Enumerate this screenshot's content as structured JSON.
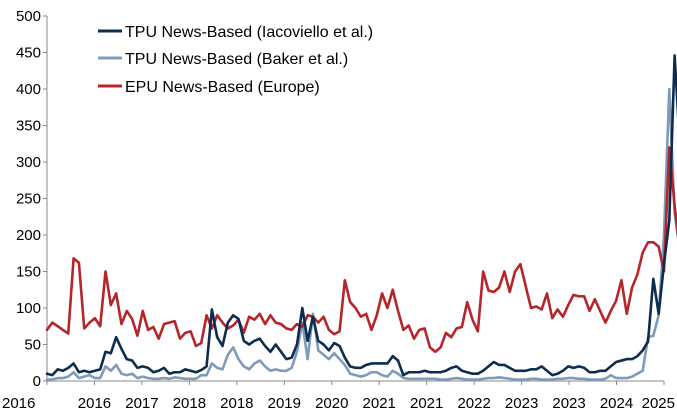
{
  "chart_data": {
    "type": "line",
    "title": "",
    "xlabel": "",
    "ylabel": "",
    "ylim": [
      0,
      500
    ],
    "yticks": [
      0,
      50,
      100,
      150,
      200,
      250,
      300,
      350,
      400,
      450,
      500
    ],
    "xlim": [
      2016.0,
      2025.667
    ],
    "xtick_labels": [
      "2016",
      "2016",
      "2017",
      "2018",
      "2018",
      "2019",
      "2020",
      "2021",
      "2021",
      "2022",
      "2023",
      "2023",
      "2024",
      "2025"
    ],
    "grid": false,
    "legend_position": "top-left",
    "series": [
      {
        "name": "TPU News-Based (Iacoviello et al.)",
        "color": "#0d2d4f",
        "start": 2016.0,
        "step_months": 1,
        "values": [
          10,
          8,
          16,
          14,
          18,
          24,
          12,
          14,
          12,
          14,
          16,
          40,
          38,
          60,
          44,
          30,
          28,
          18,
          20,
          18,
          12,
          14,
          18,
          10,
          12,
          12,
          16,
          14,
          12,
          15,
          20,
          98,
          60,
          48,
          80,
          90,
          85,
          55,
          50,
          55,
          58,
          48,
          40,
          50,
          40,
          30,
          32,
          50,
          100,
          55,
          88,
          55,
          50,
          42,
          52,
          48,
          32,
          20,
          18,
          18,
          22,
          24,
          24,
          24,
          24,
          34,
          28,
          8,
          12,
          12,
          12,
          14,
          12,
          12,
          12,
          14,
          18,
          20,
          14,
          12,
          10,
          10,
          14,
          20,
          26,
          22,
          22,
          18,
          14,
          14,
          14,
          16,
          16,
          20,
          14,
          8,
          10,
          14,
          20,
          18,
          20,
          18,
          12,
          12,
          14,
          14,
          20,
          26,
          28,
          30,
          30,
          34,
          42,
          54,
          140,
          92,
          160,
          220,
          446,
          320,
          210,
          180,
          218
        ],
        "extra_values": []
      },
      {
        "name": "TPU News-Based (Baker et al.)",
        "color": "#7f9bb8",
        "start": 2016.0,
        "step_months": 1,
        "values": [
          2,
          2,
          4,
          4,
          6,
          12,
          4,
          6,
          8,
          4,
          4,
          20,
          14,
          22,
          10,
          8,
          10,
          4,
          6,
          4,
          3,
          3,
          4,
          3,
          5,
          4,
          3,
          3,
          3,
          8,
          8,
          24,
          18,
          16,
          36,
          46,
          30,
          20,
          16,
          24,
          28,
          20,
          14,
          16,
          14,
          14,
          18,
          40,
          80,
          30,
          92,
          42,
          36,
          30,
          38,
          30,
          22,
          10,
          8,
          6,
          8,
          12,
          12,
          8,
          6,
          14,
          10,
          4,
          3,
          3,
          3,
          3,
          3,
          3,
          2,
          2,
          3,
          4,
          3,
          2,
          2,
          2,
          3,
          4,
          4,
          5,
          4,
          3,
          2,
          2,
          2,
          3,
          3,
          2,
          2,
          2,
          3,
          3,
          4,
          4,
          3,
          3,
          2,
          2,
          2,
          3,
          8,
          4,
          4,
          4,
          6,
          10,
          14,
          60,
          62,
          90,
          200,
          400,
          230,
          176,
          175
        ],
        "extra_values": []
      },
      {
        "name": "EPU News-Based (Europe)",
        "color": "#b5252a",
        "start": 2016.0,
        "step_months": 1,
        "values": [
          70,
          80,
          75,
          70,
          65,
          168,
          162,
          72,
          80,
          86,
          75,
          150,
          104,
          120,
          78,
          96,
          85,
          62,
          96,
          70,
          74,
          58,
          78,
          80,
          82,
          58,
          66,
          68,
          48,
          52,
          90,
          72,
          90,
          80,
          72,
          76,
          84,
          66,
          88,
          84,
          92,
          78,
          90,
          80,
          78,
          72,
          70,
          78,
          74,
          90,
          88,
          80,
          88,
          70,
          64,
          68,
          138,
          108,
          100,
          88,
          92,
          70,
          90,
          120,
          100,
          125,
          96,
          70,
          76,
          58,
          70,
          72,
          46,
          40,
          46,
          66,
          60,
          72,
          74,
          108,
          84,
          68,
          150,
          124,
          122,
          128,
          150,
          122,
          150,
          160,
          130,
          100,
          102,
          98,
          120,
          86,
          98,
          88,
          104,
          118,
          116,
          116,
          96,
          112,
          96,
          80,
          96,
          110,
          138,
          92,
          128,
          146,
          176,
          190,
          190,
          184,
          150,
          320,
          240,
          180,
          218
        ],
        "extra_values": []
      }
    ]
  }
}
